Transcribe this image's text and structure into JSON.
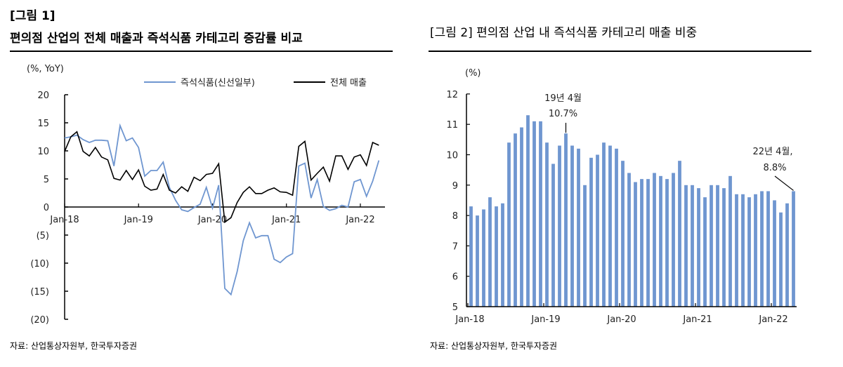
{
  "left": {
    "fig_label": "[그림 1]",
    "title": "편의점 산업의 전체 매출과 즉석식품 카테고리 증감률 비교",
    "source": "자료: 산업통상자원부, 한국투자증권"
  },
  "right": {
    "title": "[그림 2] 편의점 산업 내 즉석식품 카테고리 매출 비중",
    "source": "자료:   산업통상자원부, 한국투자증권"
  },
  "colors": {
    "blue": "#6f96d0",
    "black": "#000000",
    "bar": "#6f96d0"
  },
  "chart_data": [
    {
      "type": "line",
      "ylabel": "(%, YoY)",
      "ylim": [
        -20,
        20
      ],
      "yticks": [
        "20",
        "15",
        "10",
        "5",
        "0",
        "(5)",
        "(10)",
        "(15)",
        "(20)"
      ],
      "xticks": [
        "Jan-18",
        "Jan-19",
        "Jan-20",
        "Jan-21",
        "Jan-22"
      ],
      "x_start": "2018-01",
      "x_end": "2022-04",
      "legend": "top",
      "series": [
        {
          "name": "즉석식품(신선일부)",
          "color": "#6f96d0",
          "values": [
            12.3,
            12.5,
            12.8,
            12.0,
            11.5,
            11.9,
            11.9,
            11.8,
            7.3,
            14.5,
            11.8,
            12.3,
            10.6,
            5.5,
            6.5,
            6.5,
            8.0,
            3.5,
            1.2,
            -0.5,
            -0.8,
            -0.1,
            0.5,
            3.5,
            -0.2,
            3.9,
            -14.5,
            -15.6,
            -11.5,
            -6.0,
            -2.8,
            -5.5,
            -5.1,
            -5.1,
            -9.3,
            -9.9,
            -8.9,
            -8.3,
            7.3,
            7.8,
            1.6,
            4.9,
            0.1,
            -0.6,
            -0.3,
            0.3,
            0.0,
            4.5,
            4.9,
            1.9,
            4.6,
            8.3
          ]
        },
        {
          "name": "전체 매출",
          "color": "#000000",
          "values": [
            9.9,
            12.5,
            13.4,
            9.9,
            9.1,
            10.6,
            8.9,
            8.4,
            5.1,
            4.8,
            6.5,
            4.9,
            6.6,
            3.7,
            3.0,
            3.2,
            5.8,
            3.0,
            2.5,
            3.6,
            2.8,
            5.3,
            4.7,
            5.8,
            6.0,
            7.7,
            -2.7,
            -1.9,
            0.8,
            2.6,
            3.6,
            2.4,
            2.4,
            3.0,
            3.4,
            2.7,
            2.6,
            2.1,
            10.8,
            11.7,
            4.8,
            6.0,
            7.1,
            4.6,
            9.1,
            9.1,
            6.7,
            8.9,
            9.3,
            7.4,
            11.5,
            11.0
          ]
        }
      ]
    },
    {
      "type": "bar",
      "ylabel": "(%)",
      "ylim": [
        5,
        12
      ],
      "yticks": [
        "12",
        "11",
        "10",
        "9",
        "8",
        "7",
        "6",
        "5"
      ],
      "xticks": [
        "Jan-18",
        "Jan-19",
        "Jan-20",
        "Jan-21",
        "Jan-22"
      ],
      "x_start": "2018-01",
      "x_end": "2022-04",
      "values": [
        8.3,
        8.0,
        8.2,
        8.6,
        8.3,
        8.4,
        10.4,
        10.7,
        10.9,
        11.3,
        11.1,
        11.1,
        10.4,
        9.7,
        10.3,
        10.7,
        10.3,
        10.2,
        9.0,
        9.9,
        10.0,
        10.4,
        10.3,
        10.2,
        9.8,
        9.4,
        9.1,
        9.2,
        9.2,
        9.4,
        9.3,
        9.2,
        9.4,
        9.8,
        9.0,
        9.0,
        8.9,
        8.6,
        9.0,
        9.0,
        8.9,
        9.3,
        8.7,
        8.7,
        8.6,
        8.7,
        8.8,
        8.8,
        8.5,
        8.1,
        8.4,
        8.8
      ],
      "annotations": [
        {
          "index": 15,
          "line1": "19년 4월",
          "line2": "10.7%"
        },
        {
          "index": 51,
          "line1": "22년 4월,",
          "line2": "8.8%"
        }
      ]
    }
  ]
}
